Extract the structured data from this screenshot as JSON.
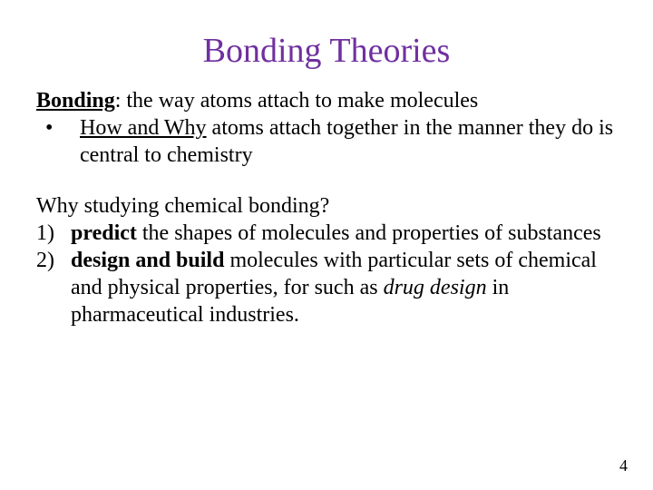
{
  "colors": {
    "title_color": "#7030a0",
    "body_color": "#000000",
    "background": "#ffffff"
  },
  "title": "Bonding Theories",
  "definition": {
    "term": "Bonding",
    "rest": ": the way atoms attach to make molecules"
  },
  "bullet": {
    "marker": "•",
    "pre": "How and Why",
    "rest": " atoms attach together in the manner they do is central to chemistry"
  },
  "question": "Why studying chemical bonding?",
  "items": [
    {
      "num": "1)",
      "bold": "predict",
      "rest": " the shapes of molecules and properties of substances"
    },
    {
      "num": "2)",
      "bold": "design and build",
      "mid": " molecules with particular sets of chemical and physical properties, for such as ",
      "italic": "drug design",
      "tail": " in pharmaceutical industries."
    }
  ],
  "page_number": "4"
}
